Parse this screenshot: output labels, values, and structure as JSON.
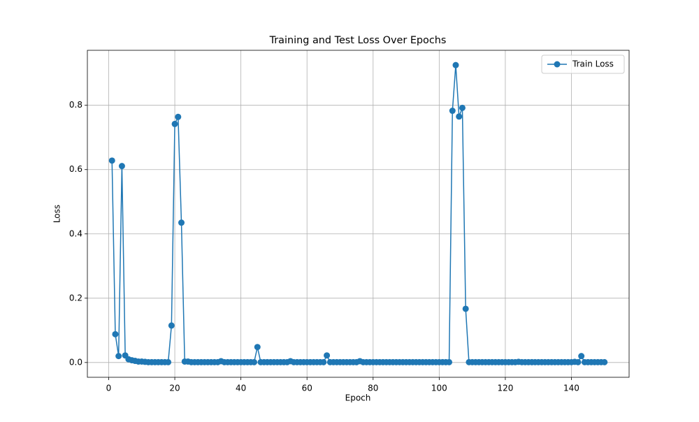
{
  "chart_data": {
    "type": "line",
    "title": "Training and Test Loss Over Epochs",
    "x_label": "Epoch",
    "y_label": "Loss",
    "x": [
      1,
      2,
      3,
      4,
      5,
      6,
      7,
      8,
      9,
      10,
      11,
      12,
      13,
      14,
      15,
      16,
      17,
      18,
      19,
      20,
      21,
      22,
      23,
      24,
      25,
      26,
      27,
      28,
      29,
      30,
      31,
      32,
      33,
      34,
      35,
      36,
      37,
      38,
      39,
      40,
      41,
      42,
      43,
      44,
      45,
      46,
      47,
      48,
      49,
      50,
      51,
      52,
      53,
      54,
      55,
      56,
      57,
      58,
      59,
      60,
      61,
      62,
      63,
      64,
      65,
      66,
      67,
      68,
      69,
      70,
      71,
      72,
      73,
      74,
      75,
      76,
      77,
      78,
      79,
      80,
      81,
      82,
      83,
      84,
      85,
      86,
      87,
      88,
      89,
      90,
      91,
      92,
      93,
      94,
      95,
      96,
      97,
      98,
      99,
      100,
      101,
      102,
      103,
      104,
      105,
      106,
      107,
      108,
      109,
      110,
      111,
      112,
      113,
      114,
      115,
      116,
      117,
      118,
      119,
      120,
      121,
      122,
      123,
      124,
      125,
      126,
      127,
      128,
      129,
      130,
      131,
      132,
      133,
      134,
      135,
      136,
      137,
      138,
      139,
      140,
      141,
      142,
      143,
      144,
      145,
      146,
      147,
      148,
      149,
      150
    ],
    "series": [
      {
        "name": "Train Loss",
        "color": "#1f77b4",
        "values": [
          0.628,
          0.088,
          0.02,
          0.611,
          0.022,
          0.01,
          0.007,
          0.005,
          0.003,
          0.003,
          0.002,
          0.001,
          0.001,
          0.001,
          0.001,
          0.001,
          0.001,
          0.001,
          0.115,
          0.742,
          0.764,
          0.435,
          0.003,
          0.003,
          0.001,
          0.001,
          0.001,
          0.001,
          0.001,
          0.001,
          0.001,
          0.001,
          0.001,
          0.004,
          0.001,
          0.001,
          0.001,
          0.001,
          0.001,
          0.001,
          0.001,
          0.001,
          0.001,
          0.001,
          0.048,
          0.001,
          0.001,
          0.001,
          0.001,
          0.001,
          0.001,
          0.001,
          0.001,
          0.001,
          0.004,
          0.001,
          0.001,
          0.001,
          0.001,
          0.001,
          0.001,
          0.001,
          0.001,
          0.001,
          0.001,
          0.022,
          0.001,
          0.001,
          0.001,
          0.001,
          0.001,
          0.001,
          0.001,
          0.001,
          0.001,
          0.004,
          0.001,
          0.001,
          0.001,
          0.001,
          0.001,
          0.001,
          0.001,
          0.001,
          0.001,
          0.001,
          0.001,
          0.001,
          0.001,
          0.001,
          0.001,
          0.001,
          0.001,
          0.001,
          0.001,
          0.001,
          0.001,
          0.001,
          0.001,
          0.001,
          0.001,
          0.001,
          0.001,
          0.783,
          0.925,
          0.765,
          0.792,
          0.167,
          0.001,
          0.001,
          0.001,
          0.001,
          0.001,
          0.001,
          0.001,
          0.001,
          0.001,
          0.001,
          0.001,
          0.001,
          0.001,
          0.001,
          0.001,
          0.002,
          0.001,
          0.001,
          0.001,
          0.001,
          0.001,
          0.001,
          0.001,
          0.001,
          0.001,
          0.001,
          0.001,
          0.001,
          0.001,
          0.001,
          0.001,
          0.001,
          0.002,
          0.001,
          0.02,
          0.001,
          0.001,
          0.001,
          0.001,
          0.001,
          0.001,
          0.001
        ]
      }
    ],
    "xlim": [
      -6.45,
      157.45
    ],
    "xticks": [
      0,
      20,
      40,
      60,
      80,
      100,
      120,
      140
    ],
    "ylim": [
      -0.046,
      0.971
    ],
    "yticks": [
      {
        "value": 0,
        "label": "0.0"
      },
      0.2,
      0.4,
      0.6,
      0.8
    ],
    "grid": true,
    "legend": "upper right"
  }
}
